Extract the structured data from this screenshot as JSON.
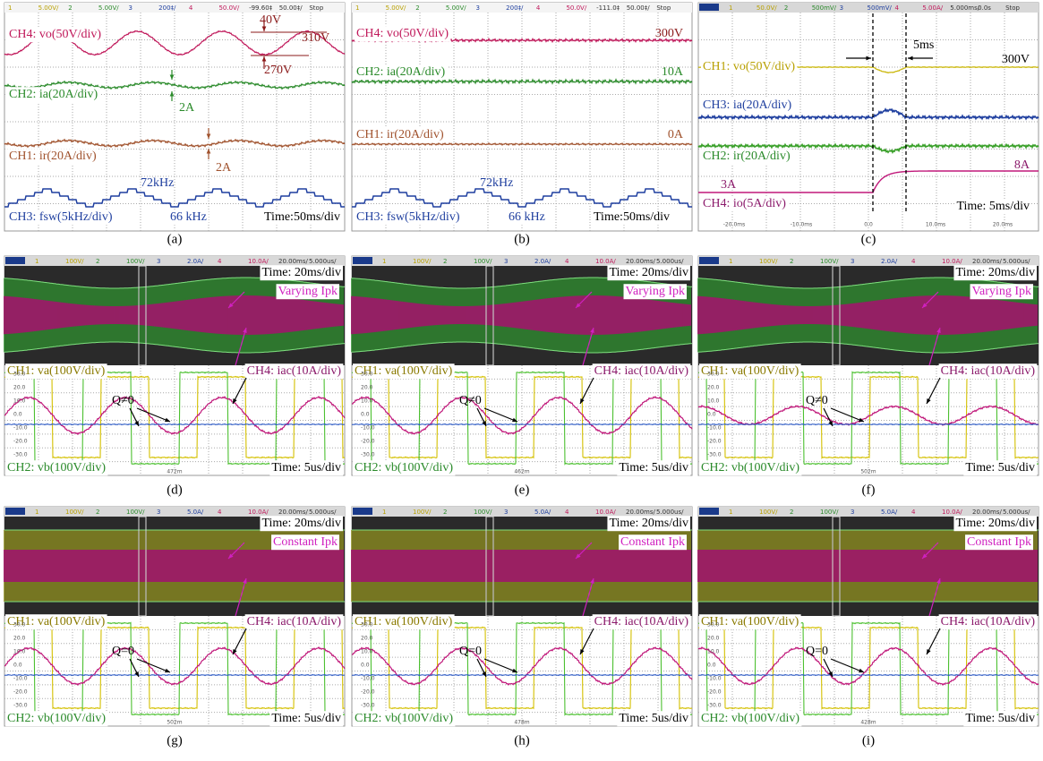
{
  "panels": [
    {
      "caption": "(a)",
      "header": [
        "1",
        "5.00V/",
        "2",
        "5.00V/",
        "3",
        "200‡/",
        "4",
        "50.0V/",
        "-99.60‡",
        "50.00‡/",
        "Stop"
      ],
      "labels": [
        "CH4: vo(50V/div)",
        "40V",
        "310V",
        "270V",
        "CH2: ia(20A/div)",
        "2A",
        "CH1: ir(20A/div)",
        "2A",
        "72kHz",
        "66 kHz",
        "CH3: fsw(5kHz/div)",
        "Time:50ms/div"
      ]
    },
    {
      "caption": "(b)",
      "header": [
        "1",
        "5.00V/",
        "2",
        "5.00V/",
        "3",
        "200‡/",
        "4",
        "50.0V/",
        "-111.0‡",
        "50.00‡/",
        "Stop"
      ],
      "labels": [
        "CH4: vo(50V/div)",
        "300V",
        "CH2: ia(20A/div)",
        "10A",
        "CH1: ir(20A/div)",
        "0A",
        "72kHz",
        "66 kHz",
        "CH3: fsw(5kHz/div)",
        "Time:50ms/div"
      ]
    },
    {
      "caption": "(c)",
      "header": [
        "1",
        "50.0V/",
        "2",
        "500mV/",
        "3",
        "500mV/",
        "4",
        "5.00A/",
        "5.000ms/",
        "0.0s",
        "Stop"
      ],
      "labels": [
        "CH1: vo(50V/div)",
        "5ms",
        "300V",
        "CH3: ia(20A/div)",
        "CH2: ir(20A/div)",
        "3A",
        "8A",
        "CH4: io(5A/div)",
        "Time: 5ms/div"
      ],
      "scale": [
        "-20.0ms",
        "-10.0ms",
        "0.0",
        "10.0ms",
        "20.0ms"
      ]
    },
    {
      "caption": "(d)",
      "header": [
        "1",
        "100V/",
        "2",
        "100V/",
        "3",
        "2.0A/",
        "4",
        "10.0A/",
        "20.00ms/",
        "5.000us/"
      ],
      "labels": [
        "Time: 20ms/div",
        "Varying Ipk",
        "CH1: va(100V/div)",
        "CH4: iac(10A/div)",
        "Q≠0",
        "CH2: vb(100V/div)",
        "Time: 5us/div"
      ],
      "scale": [
        "30.0",
        "20.0",
        "10.0",
        "0.0",
        "-10.0",
        "-20.0",
        "-30.0"
      ],
      "marker": "472m"
    },
    {
      "caption": "(e)",
      "header": [
        "1",
        "100V/",
        "2",
        "100V/",
        "3",
        "2.0A/",
        "4",
        "10.0A/",
        "20.00ms/",
        "5.000us/"
      ],
      "labels": [
        "Time: 20ms/div",
        "Varying Ipk",
        "CH1: va(100V/div)",
        "CH4: iac(10A/div)",
        "Q≠0",
        "CH2: vb(100V/div)",
        "Time: 5us/div"
      ],
      "scale": [
        "30.0",
        "20.0",
        "10.0",
        "0.0",
        "-10.0",
        "-20.0",
        "-30.0"
      ],
      "marker": "462m"
    },
    {
      "caption": "(f)",
      "header": [
        "1",
        "100V/",
        "2",
        "100V/",
        "3",
        "2.0A/",
        "4",
        "10.0A/",
        "20.00ms/",
        "5.000us/"
      ],
      "labels": [
        "Time: 20ms/div",
        "Varying Ipk",
        "CH1: va(100V/div)",
        "CH4: iac(10A/div)",
        "Q≠0",
        "CH2: vb(100V/div)",
        "Time: 5us/div"
      ],
      "scale": [
        "30.0",
        "20.0",
        "10.0",
        "0.0",
        "-10.0",
        "-20.0",
        "-30.0"
      ],
      "marker": "502m"
    },
    {
      "caption": "(g)",
      "header": [
        "1",
        "100V/",
        "2",
        "100V/",
        "3",
        "5.0A/",
        "4",
        "10.0A/",
        "20.00ms/",
        "5.000us/"
      ],
      "labels": [
        "Time: 20ms/div",
        "Constant Ipk",
        "CH1: va(100V/div)",
        "CH4: iac(10A/div)",
        "Q=0",
        "CH2: vb(100V/div)",
        "Time: 5us/div"
      ],
      "scale": [
        "30.0",
        "20.0",
        "10.0",
        "0.0",
        "-10.0",
        "-20.0",
        "-30.0"
      ],
      "marker": "502m"
    },
    {
      "caption": "(h)",
      "header": [
        "1",
        "100V/",
        "2",
        "100V/",
        "3",
        "5.0A/",
        "4",
        "10.0A/",
        "20.00ms/",
        "5.000us/"
      ],
      "labels": [
        "Time: 20ms/div",
        "Constant Ipk",
        "CH1: va(100V/div)",
        "CH4: iac(10A/div)",
        "Q=0",
        "CH2: vb(100V/div)",
        "Time: 5us/div"
      ],
      "scale": [
        "30.0",
        "20.0",
        "10.0",
        "0.0",
        "-10.0",
        "-20.0",
        "-30.0"
      ],
      "marker": "478m"
    },
    {
      "caption": "(i)",
      "header": [
        "1",
        "100V/",
        "2",
        "100V/",
        "3",
        "5.0A/",
        "4",
        "10.0A/",
        "20.00ms/",
        "5.000us/"
      ],
      "labels": [
        "Time: 20ms/div",
        "Constant Ipk",
        "CH1: va(100V/div)",
        "CH4: iac(10A/div)",
        "Q=0",
        "CH2: vb(100V/div)",
        "Time: 5us/div"
      ],
      "scale": [
        "30.0",
        "20.0",
        "10.0",
        "0.0",
        "-10.0",
        "-20.0",
        "-30.0"
      ],
      "marker": "428m"
    }
  ]
}
